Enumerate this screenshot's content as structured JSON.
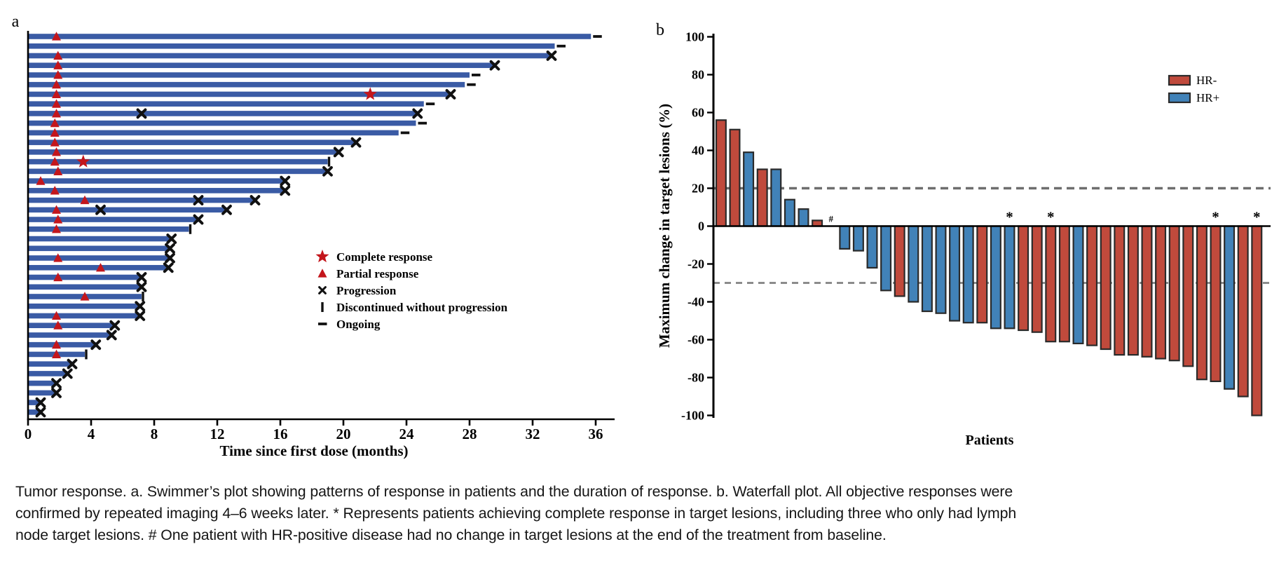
{
  "figure": {
    "panel_a_label": "a",
    "panel_b_label": "b"
  },
  "caption": {
    "line1": "Tumor response. a. Swimmer’s plot showing patterns of response in patients and the duration of response. b. Waterfall plot. All objective responses were",
    "line2": "confirmed by repeated imaging 4–6 weeks later. * Represents patients achieving complete response in target lesions, including three who only had lymph",
    "line3": "node target lesions. # One patient with HR-positive disease had no change in target lesions at the end of the treatment from baseline."
  },
  "chart_data": [
    {
      "type": "bar",
      "subtype": "swimmer",
      "xlabel": "Time since first dose (months)",
      "xlim": [
        0,
        37
      ],
      "xticks": [
        0,
        4,
        8,
        12,
        16,
        20,
        24,
        28,
        32,
        36
      ],
      "grid": false,
      "bar_color": "#3a5ba5",
      "marker_red": "#c3161c",
      "marker_black": "#111111",
      "legend_position": "center-right",
      "legend": [
        {
          "marker": "star",
          "label": "Complete response"
        },
        {
          "marker": "triangle",
          "label": "Partial response"
        },
        {
          "marker": "x",
          "label": "Progression"
        },
        {
          "marker": "bar",
          "label": "Discontinued without progression"
        },
        {
          "marker": "dash",
          "label": "Ongoing"
        }
      ],
      "patients": [
        {
          "duration": 35.7,
          "end": "ongoing",
          "pr": 1.8
        },
        {
          "duration": 33.4,
          "end": "ongoing"
        },
        {
          "duration": 33.2,
          "end": "progression",
          "pr": 1.9
        },
        {
          "duration": 29.6,
          "end": "progression",
          "pr": 1.9
        },
        {
          "duration": 28.0,
          "end": "ongoing",
          "pr": 1.9
        },
        {
          "duration": 27.7,
          "end": "ongoing",
          "pr": 1.8
        },
        {
          "duration": 26.8,
          "end": "progression",
          "pr": 1.8,
          "cr": 21.7
        },
        {
          "duration": 25.1,
          "end": "ongoing",
          "pr": 1.8
        },
        {
          "duration": 24.7,
          "end": "progression",
          "pr": 1.8,
          "px": [
            7.2
          ]
        },
        {
          "duration": 24.6,
          "end": "ongoing",
          "pr": 1.7
        },
        {
          "duration": 23.5,
          "end": "ongoing",
          "pr": 1.7
        },
        {
          "duration": 20.8,
          "end": "progression",
          "pr": 1.7
        },
        {
          "duration": 19.7,
          "end": "progression",
          "pr": 1.8
        },
        {
          "duration": 19.0,
          "end": "discontinued",
          "pr": 1.7,
          "cr": 3.5
        },
        {
          "duration": 19.0,
          "end": "progression",
          "pr": 1.9
        },
        {
          "duration": 16.3,
          "end": "progression",
          "pr": 0.8
        },
        {
          "duration": 16.3,
          "end": "progression",
          "pr": 1.7
        },
        {
          "duration": 14.4,
          "end": "progression",
          "pr": 3.6,
          "px": [
            10.8
          ]
        },
        {
          "duration": 12.6,
          "end": "progression",
          "pr": 1.8,
          "px": [
            4.6
          ]
        },
        {
          "duration": 10.8,
          "end": "progression",
          "pr": 1.9
        },
        {
          "duration": 10.2,
          "end": "discontinued",
          "pr": 1.8
        },
        {
          "duration": 9.1,
          "end": "progression"
        },
        {
          "duration": 9.0,
          "end": "progression"
        },
        {
          "duration": 9.0,
          "end": "progression",
          "pr": 1.9
        },
        {
          "duration": 8.9,
          "end": "progression",
          "pr": 4.6
        },
        {
          "duration": 7.2,
          "end": "progression",
          "pr": 1.9
        },
        {
          "duration": 7.2,
          "end": "progression"
        },
        {
          "duration": 7.2,
          "end": "discontinued",
          "pr": 3.6
        },
        {
          "duration": 7.1,
          "end": "progression"
        },
        {
          "duration": 7.1,
          "end": "progression",
          "pr": 1.8
        },
        {
          "duration": 5.5,
          "end": "progression",
          "pr": 1.9
        },
        {
          "duration": 5.3,
          "end": "progression"
        },
        {
          "duration": 4.3,
          "end": "progression",
          "pr": 1.8
        },
        {
          "duration": 3.6,
          "end": "discontinued",
          "pr": 1.8
        },
        {
          "duration": 2.8,
          "end": "progression"
        },
        {
          "duration": 2.5,
          "end": "progression"
        },
        {
          "duration": 1.8,
          "end": "progression"
        },
        {
          "duration": 1.8,
          "end": "progression"
        },
        {
          "duration": 0.8,
          "end": "progression"
        },
        {
          "duration": 0.8,
          "end": "progression"
        }
      ]
    },
    {
      "type": "bar",
      "subtype": "waterfall",
      "ylabel": "Maximum change in target lesions (%)",
      "xlabel": "Patients",
      "ylim": [
        -100,
        100
      ],
      "yticks": [
        100,
        80,
        60,
        40,
        20,
        0,
        -20,
        -40,
        -60,
        -80,
        -100
      ],
      "grid": false,
      "reference_lines": [
        20,
        -30
      ],
      "dash_color_upper": "#6e6e6e",
      "dash_color_lower": "#8c8c8c",
      "outline_color": "#2a2a2a",
      "legend_position": "top-right",
      "legend": [
        {
          "label": "HR-",
          "color": "#c04a3c"
        },
        {
          "label": "HR+",
          "color": "#4182b8"
        }
      ],
      "bars": [
        {
          "value": 56,
          "group": "HR-"
        },
        {
          "value": 51,
          "group": "HR-"
        },
        {
          "value": 39,
          "group": "HR+"
        },
        {
          "value": 30,
          "group": "HR-"
        },
        {
          "value": 30,
          "group": "HR+"
        },
        {
          "value": 14,
          "group": "HR+"
        },
        {
          "value": 9,
          "group": "HR+"
        },
        {
          "value": 3,
          "group": "HR-"
        },
        {
          "value": 0,
          "group": "HR+",
          "annotation": "#"
        },
        {
          "value": -12,
          "group": "HR+"
        },
        {
          "value": -13,
          "group": "HR+"
        },
        {
          "value": -22,
          "group": "HR+"
        },
        {
          "value": -34,
          "group": "HR+"
        },
        {
          "value": -37,
          "group": "HR-"
        },
        {
          "value": -40,
          "group": "HR+"
        },
        {
          "value": -45,
          "group": "HR+"
        },
        {
          "value": -46,
          "group": "HR+"
        },
        {
          "value": -50,
          "group": "HR+"
        },
        {
          "value": -51,
          "group": "HR+"
        },
        {
          "value": -51,
          "group": "HR-"
        },
        {
          "value": -54,
          "group": "HR+"
        },
        {
          "value": -54,
          "group": "HR+",
          "annotation": "*"
        },
        {
          "value": -55,
          "group": "HR-"
        },
        {
          "value": -56,
          "group": "HR-"
        },
        {
          "value": -61,
          "group": "HR-",
          "annotation": "*"
        },
        {
          "value": -61,
          "group": "HR-"
        },
        {
          "value": -62,
          "group": "HR+"
        },
        {
          "value": -63,
          "group": "HR-"
        },
        {
          "value": -65,
          "group": "HR-"
        },
        {
          "value": -68,
          "group": "HR-"
        },
        {
          "value": -68,
          "group": "HR-"
        },
        {
          "value": -69,
          "group": "HR-"
        },
        {
          "value": -70,
          "group": "HR-"
        },
        {
          "value": -71,
          "group": "HR-"
        },
        {
          "value": -74,
          "group": "HR-"
        },
        {
          "value": -81,
          "group": "HR-"
        },
        {
          "value": -82,
          "group": "HR-",
          "annotation": "*"
        },
        {
          "value": -86,
          "group": "HR+"
        },
        {
          "value": -90,
          "group": "HR-"
        },
        {
          "value": -100,
          "group": "HR-",
          "annotation": "*"
        }
      ]
    }
  ]
}
